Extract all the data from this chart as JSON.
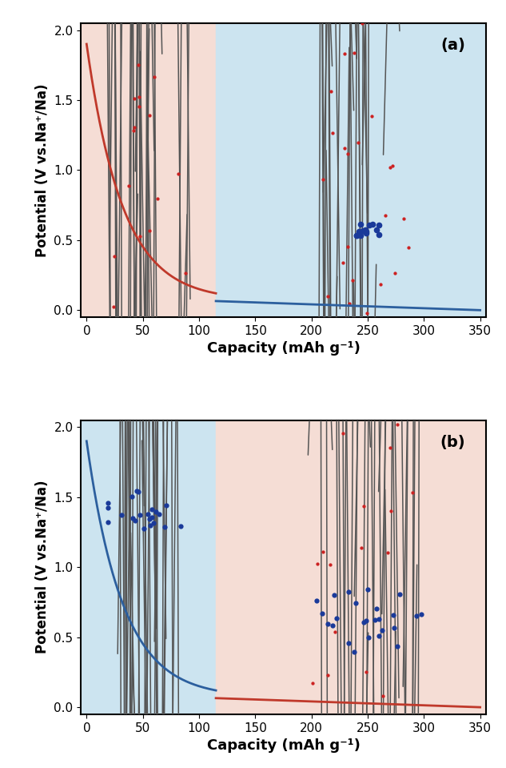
{
  "fig_width": 6.33,
  "fig_height": 9.59,
  "dpi": 100,
  "xlim": [
    -5,
    355
  ],
  "ylim": [
    -0.05,
    2.05
  ],
  "xticks": [
    0,
    50,
    100,
    150,
    200,
    250,
    300,
    350
  ],
  "yticks": [
    0.0,
    0.5,
    1.0,
    1.5,
    2.0
  ],
  "xlabel": "Capacity (mAh g⁻¹)",
  "ylabel": "Potential (V vs.Na⁺/Na)",
  "bg_pink": "#f5ddd5",
  "bg_blue": "#cce4f0",
  "curve_red": "#c0392b",
  "curve_blue": "#2c5f9e",
  "split_x": 115,
  "panel_a_label": "(a)",
  "panel_b_label": "(b)",
  "red_dot": "#cc2222",
  "blue_dot": "#1a3a9a",
  "line_color": "#555555"
}
